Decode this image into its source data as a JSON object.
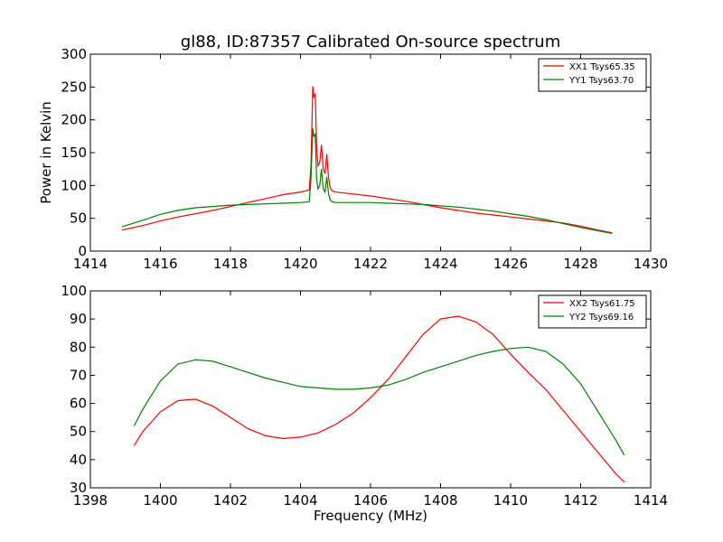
{
  "title": "gl88, ID:87357 Calibrated On-source spectrum",
  "chart_data": [
    {
      "type": "line",
      "title": "gl88, ID:87357 Calibrated On-source spectrum",
      "xlabel": "",
      "ylabel": "Power in Kelvin",
      "xlim": [
        1414,
        1430
      ],
      "ylim": [
        0,
        300
      ],
      "xticks": [
        1414,
        1416,
        1418,
        1420,
        1422,
        1424,
        1426,
        1428,
        1430
      ],
      "yticks": [
        0,
        50,
        100,
        150,
        200,
        250,
        300
      ],
      "grid": false,
      "legend_position": "top-right",
      "series": [
        {
          "name": "XX1 Tsys65.35",
          "color": "#ff0000",
          "x": [
            1414.9,
            1415.5,
            1416,
            1416.5,
            1417,
            1417.5,
            1418,
            1418.5,
            1419,
            1419.5,
            1420,
            1420.25,
            1420.3,
            1420.35,
            1420.38,
            1420.42,
            1420.46,
            1420.5,
            1420.55,
            1420.6,
            1420.65,
            1420.7,
            1420.75,
            1420.8,
            1420.85,
            1420.9,
            1421,
            1421.5,
            1422,
            1422.5,
            1423,
            1423.5,
            1424,
            1424.5,
            1425,
            1425.5,
            1426,
            1426.5,
            1427,
            1427.5,
            1428,
            1428.5,
            1428.9
          ],
          "y": [
            32,
            39,
            46,
            52,
            57,
            62,
            68,
            74,
            80,
            86,
            90,
            93,
            130,
            251,
            235,
            240,
            160,
            130,
            135,
            162,
            125,
            118,
            148,
            112,
            96,
            92,
            90,
            87,
            84,
            80,
            76,
            71,
            66,
            62,
            58,
            55,
            52,
            49,
            46,
            43,
            38,
            32,
            28
          ]
        },
        {
          "name": "YY1 Tsys63.70",
          "color": "#008000",
          "x": [
            1414.9,
            1415.5,
            1416,
            1416.5,
            1417,
            1417.5,
            1418,
            1418.5,
            1419,
            1419.5,
            1420,
            1420.25,
            1420.3,
            1420.35,
            1420.38,
            1420.42,
            1420.46,
            1420.5,
            1420.55,
            1420.6,
            1420.65,
            1420.7,
            1420.75,
            1420.8,
            1420.85,
            1420.9,
            1421,
            1421.5,
            1422,
            1422.5,
            1423,
            1423.5,
            1424,
            1424.5,
            1425,
            1425.5,
            1426,
            1426.5,
            1427,
            1427.5,
            1428,
            1428.5,
            1428.9
          ],
          "y": [
            37,
            47,
            56,
            62,
            66,
            68,
            70,
            71,
            72,
            73,
            74,
            75,
            110,
            187,
            175,
            178,
            110,
            95,
            100,
            125,
            95,
            90,
            113,
            88,
            78,
            75,
            74,
            74,
            74,
            73,
            72,
            71,
            69,
            67,
            64,
            61,
            57,
            53,
            48,
            42,
            36,
            31,
            27
          ]
        }
      ]
    },
    {
      "type": "line",
      "title": "",
      "xlabel": "Frequency (MHz)",
      "ylabel": "",
      "xlim": [
        1398,
        1414
      ],
      "ylim": [
        30,
        100
      ],
      "xticks": [
        1398,
        1400,
        1402,
        1404,
        1406,
        1408,
        1410,
        1412,
        1414
      ],
      "yticks": [
        30,
        40,
        50,
        60,
        70,
        80,
        90,
        100
      ],
      "grid": false,
      "legend_position": "top-right",
      "series": [
        {
          "name": "XX2 Tsys61.75",
          "color": "#ff0000",
          "x": [
            1399.25,
            1399.5,
            1400,
            1400.5,
            1401,
            1401.5,
            1402,
            1402.5,
            1403,
            1403.5,
            1404,
            1404.5,
            1405,
            1405.5,
            1406,
            1406.5,
            1407,
            1407.5,
            1408,
            1408.5,
            1409,
            1409.5,
            1410,
            1410.5,
            1411,
            1411.5,
            1412,
            1412.5,
            1413,
            1413.25
          ],
          "y": [
            45,
            50,
            57,
            61,
            61.5,
            59,
            55,
            51,
            48.5,
            47.5,
            48,
            49.5,
            52.5,
            56.5,
            62,
            68.5,
            76.5,
            84.5,
            90,
            91,
            89,
            84.5,
            77.5,
            71,
            65,
            57.5,
            50,
            42.5,
            35,
            32
          ]
        },
        {
          "name": "YY2 Tsys69.16",
          "color": "#008000",
          "x": [
            1399.25,
            1399.5,
            1400,
            1400.5,
            1401,
            1401.5,
            1402,
            1402.5,
            1403,
            1403.5,
            1404,
            1404.5,
            1405,
            1405.5,
            1406,
            1406.5,
            1407,
            1407.5,
            1408,
            1408.5,
            1409,
            1409.5,
            1410,
            1410.5,
            1411,
            1411.5,
            1412,
            1412.5,
            1413,
            1413.25
          ],
          "y": [
            52,
            58,
            68,
            74,
            75.5,
            75,
            73,
            71,
            69,
            67.5,
            66,
            65.5,
            65,
            65,
            65.5,
            66.5,
            68.5,
            71,
            73,
            75,
            77,
            78.5,
            79.5,
            80,
            78.5,
            74,
            67,
            57,
            47,
            41.5
          ]
        }
      ]
    }
  ]
}
